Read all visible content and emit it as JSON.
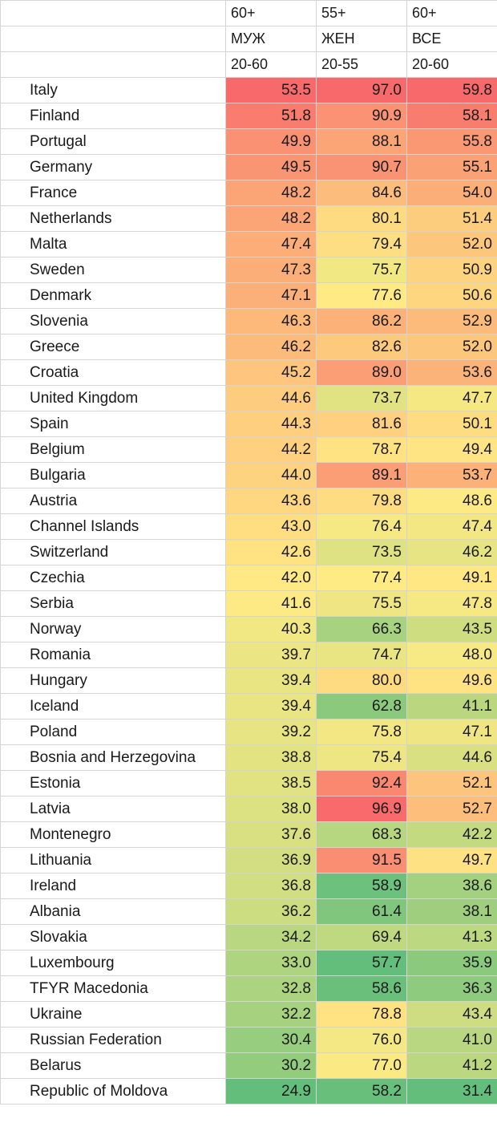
{
  "header_rows": [
    [
      "",
      "60+",
      "55+",
      "60+"
    ],
    [
      "",
      "МУЖ",
      "ЖЕН",
      "ВСЕ"
    ],
    [
      "",
      "20-60",
      "20-55",
      "20-60"
    ]
  ],
  "rows": [
    {
      "country": "Italy",
      "men": "53.5",
      "women": "97.0",
      "all": "59.8"
    },
    {
      "country": "Finland",
      "men": "51.8",
      "women": "90.9",
      "all": "58.1"
    },
    {
      "country": "Portugal",
      "men": "49.9",
      "women": "88.1",
      "all": "55.8"
    },
    {
      "country": "Germany",
      "men": "49.5",
      "women": "90.7",
      "all": "55.1"
    },
    {
      "country": "France",
      "men": "48.2",
      "women": "84.6",
      "all": "54.0"
    },
    {
      "country": "Netherlands",
      "men": "48.2",
      "women": "80.1",
      "all": "51.4"
    },
    {
      "country": "Malta",
      "men": "47.4",
      "women": "79.4",
      "all": "52.0"
    },
    {
      "country": "Sweden",
      "men": "47.3",
      "women": "75.7",
      "all": "50.9"
    },
    {
      "country": "Denmark",
      "men": "47.1",
      "women": "77.6",
      "all": "50.6"
    },
    {
      "country": "Slovenia",
      "men": "46.3",
      "women": "86.2",
      "all": "52.9"
    },
    {
      "country": "Greece",
      "men": "46.2",
      "women": "82.6",
      "all": "52.0"
    },
    {
      "country": "Croatia",
      "men": "45.2",
      "women": "89.0",
      "all": "53.6"
    },
    {
      "country": "United Kingdom",
      "men": "44.6",
      "women": "73.7",
      "all": "47.7"
    },
    {
      "country": "Spain",
      "men": "44.3",
      "women": "81.6",
      "all": "50.1"
    },
    {
      "country": "Belgium",
      "men": "44.2",
      "women": "78.7",
      "all": "49.4"
    },
    {
      "country": "Bulgaria",
      "men": "44.0",
      "women": "89.1",
      "all": "53.7"
    },
    {
      "country": "Austria",
      "men": "43.6",
      "women": "79.8",
      "all": "48.6"
    },
    {
      "country": "Channel Islands",
      "men": "43.0",
      "women": "76.4",
      "all": "47.4"
    },
    {
      "country": "Switzerland",
      "men": "42.6",
      "women": "73.5",
      "all": "46.2"
    },
    {
      "country": "Czechia",
      "men": "42.0",
      "women": "77.4",
      "all": "49.1"
    },
    {
      "country": "Serbia",
      "men": "41.6",
      "women": "75.5",
      "all": "47.8"
    },
    {
      "country": "Norway",
      "men": "40.3",
      "women": "66.3",
      "all": "43.5"
    },
    {
      "country": "Romania",
      "men": "39.7",
      "women": "74.7",
      "all": "48.0"
    },
    {
      "country": "Hungary",
      "men": "39.4",
      "women": "80.0",
      "all": "49.6"
    },
    {
      "country": "Iceland",
      "men": "39.4",
      "women": "62.8",
      "all": "41.1"
    },
    {
      "country": "Poland",
      "men": "39.2",
      "women": "75.8",
      "all": "47.1"
    },
    {
      "country": "Bosnia and Herzegovina",
      "men": "38.8",
      "women": "75.4",
      "all": "44.6"
    },
    {
      "country": "Estonia",
      "men": "38.5",
      "women": "92.4",
      "all": "52.1"
    },
    {
      "country": "Latvia",
      "men": "38.0",
      "women": "96.9",
      "all": "52.7"
    },
    {
      "country": "Montenegro",
      "men": "37.6",
      "women": "68.3",
      "all": "42.2"
    },
    {
      "country": "Lithuania",
      "men": "36.9",
      "women": "91.5",
      "all": "49.7"
    },
    {
      "country": "Ireland",
      "men": "36.8",
      "women": "58.9",
      "all": "38.6"
    },
    {
      "country": "Albania",
      "men": "36.2",
      "women": "61.4",
      "all": "38.1"
    },
    {
      "country": "Slovakia",
      "men": "34.2",
      "women": "69.4",
      "all": "41.3"
    },
    {
      "country": "Luxembourg",
      "men": "33.0",
      "women": "57.7",
      "all": "35.9"
    },
    {
      "country": "TFYR Macedonia",
      "men": "32.8",
      "women": "58.6",
      "all": "36.3"
    },
    {
      "country": "Ukraine",
      "men": "32.2",
      "women": "78.8",
      "all": "43.4"
    },
    {
      "country": "Russian Federation",
      "men": "30.4",
      "women": "76.0",
      "all": "41.0"
    },
    {
      "country": "Belarus",
      "men": "30.2",
      "women": "77.0",
      "all": "41.2"
    },
    {
      "country": "Republic of Moldova",
      "men": "24.9",
      "women": "58.2",
      "all": "31.4"
    }
  ],
  "colors": {
    "scale_low": "#63be7b",
    "scale_mid": "#ffeb84",
    "scale_high": "#f8696b",
    "grid": "#d4d4d4",
    "text": "#1a1a1a"
  }
}
